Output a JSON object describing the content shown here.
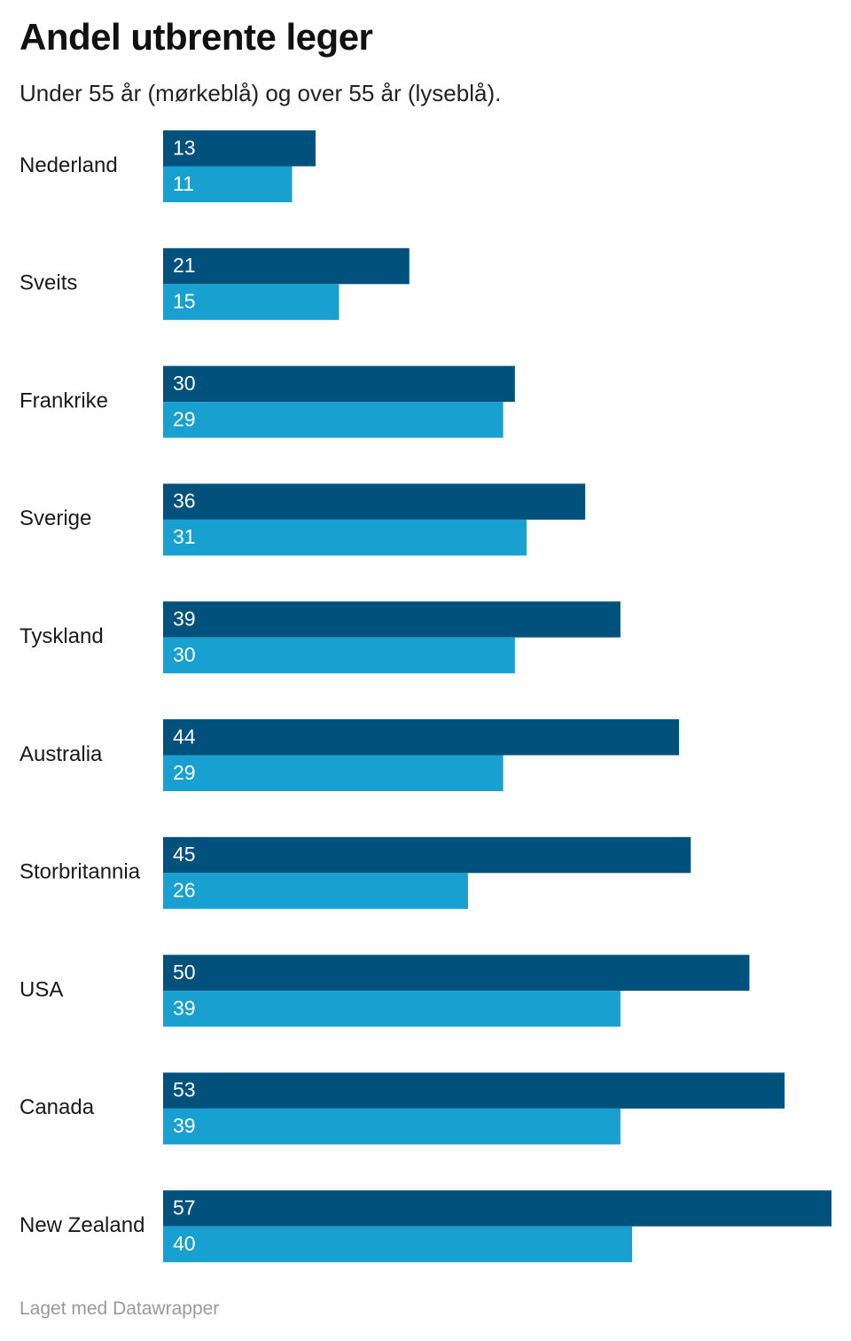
{
  "title": "Andel utbrente leger",
  "subtitle": "Under 55 år (mørkeblå) og over 55 år (lyseblå).",
  "footer": "Laget med Datawrapper",
  "chart_data": {
    "type": "bar",
    "orientation": "horizontal",
    "title": "Andel utbrente leger",
    "subtitle": "Under 55 år (mørkeblå) og over 55 år (lyseblå).",
    "categories": [
      "Nederland",
      "Sveits",
      "Frankrike",
      "Sverige",
      "Tyskland",
      "Australia",
      "Storbritannia",
      "USA",
      "Canada",
      "New Zealand"
    ],
    "series": [
      {
        "color": "#00527d",
        "values": [
          13,
          21,
          30,
          36,
          39,
          44,
          45,
          50,
          53,
          57
        ]
      },
      {
        "color": "#18a1d0",
        "values": [
          11,
          15,
          29,
          31,
          30,
          29,
          26,
          39,
          39,
          40
        ]
      }
    ],
    "xlim": [
      0,
      57
    ],
    "grid": false,
    "legend": "none",
    "data_labels": "inside-left"
  }
}
